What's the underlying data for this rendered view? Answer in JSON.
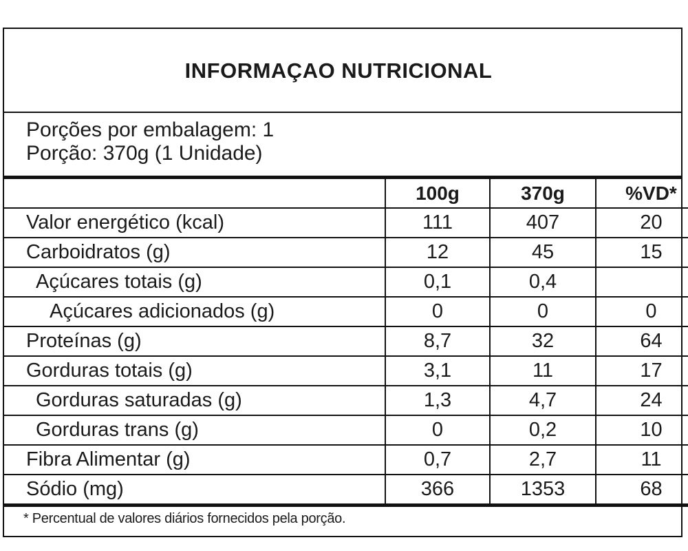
{
  "panel": {
    "title": "INFORMAÇAO NUTRICIONAL",
    "servings_per_package": "Porções por embalagem: 1",
    "serving_size": "Porção: 370g (1 Unidade)"
  },
  "table": {
    "columns": [
      "100g",
      "370g",
      "%VD*"
    ],
    "rows": [
      {
        "label": "Valor energético (kcal)",
        "indent": 0,
        "v100": "111",
        "v370": "407",
        "vd": "20"
      },
      {
        "label": "Carboidratos (g)",
        "indent": 0,
        "v100": "12",
        "v370": "45",
        "vd": "15"
      },
      {
        "label": "Açúcares totais (g)",
        "indent": 1,
        "v100": "0,1",
        "v370": "0,4",
        "vd": ""
      },
      {
        "label": "Açúcares adicionados (g)",
        "indent": 2,
        "v100": "0",
        "v370": "0",
        "vd": "0"
      },
      {
        "label": "Proteínas (g)",
        "indent": 0,
        "v100": "8,7",
        "v370": "32",
        "vd": "64"
      },
      {
        "label": "Gorduras totais (g)",
        "indent": 0,
        "v100": "3,1",
        "v370": "11",
        "vd": "17"
      },
      {
        "label": "Gorduras saturadas (g)",
        "indent": 1,
        "v100": "1,3",
        "v370": "4,7",
        "vd": "24"
      },
      {
        "label": "Gorduras trans (g)",
        "indent": 1,
        "v100": "0",
        "v370": "0,2",
        "vd": "10"
      },
      {
        "label": "Fibra Alimentar (g)",
        "indent": 0,
        "v100": "0,7",
        "v370": "2,7",
        "vd": "11"
      },
      {
        "label": "Sódio (mg)",
        "indent": 0,
        "v100": "366",
        "v370": "1353",
        "vd": "68"
      }
    ]
  },
  "footnote": "* Percentual de valores diários fornecidos pela porção."
}
